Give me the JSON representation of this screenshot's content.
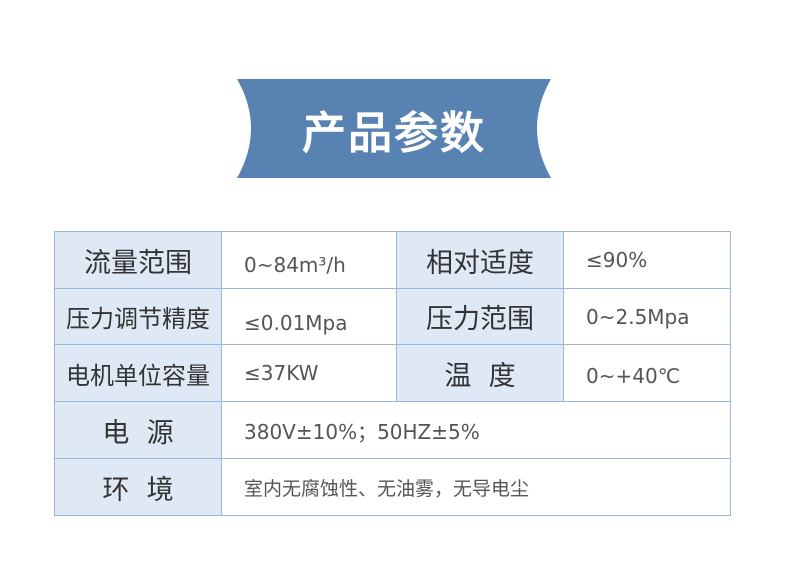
{
  "title": "产品参数",
  "colors": {
    "banner": "#5882b1",
    "label_bg": "#dfe9f6",
    "border": "#9bb7da"
  },
  "rows": [
    {
      "label": "流量范围",
      "value": "0~84m³/h",
      "label2": "相对适度",
      "value2": "≤90%"
    },
    {
      "label": "压力调节精度",
      "value": "≤0.01Mpa",
      "label2": "压力范围",
      "value2": "0~2.5Mpa"
    },
    {
      "label": "电机单位容量",
      "value": "≤37KW",
      "label2": "温  度",
      "value2": "0~+40℃"
    },
    {
      "label": "电  源",
      "value": "380V±10%；50HZ±5%"
    },
    {
      "label": "环  境",
      "value": "室内无腐蚀性、无油雾，无导电尘"
    }
  ]
}
